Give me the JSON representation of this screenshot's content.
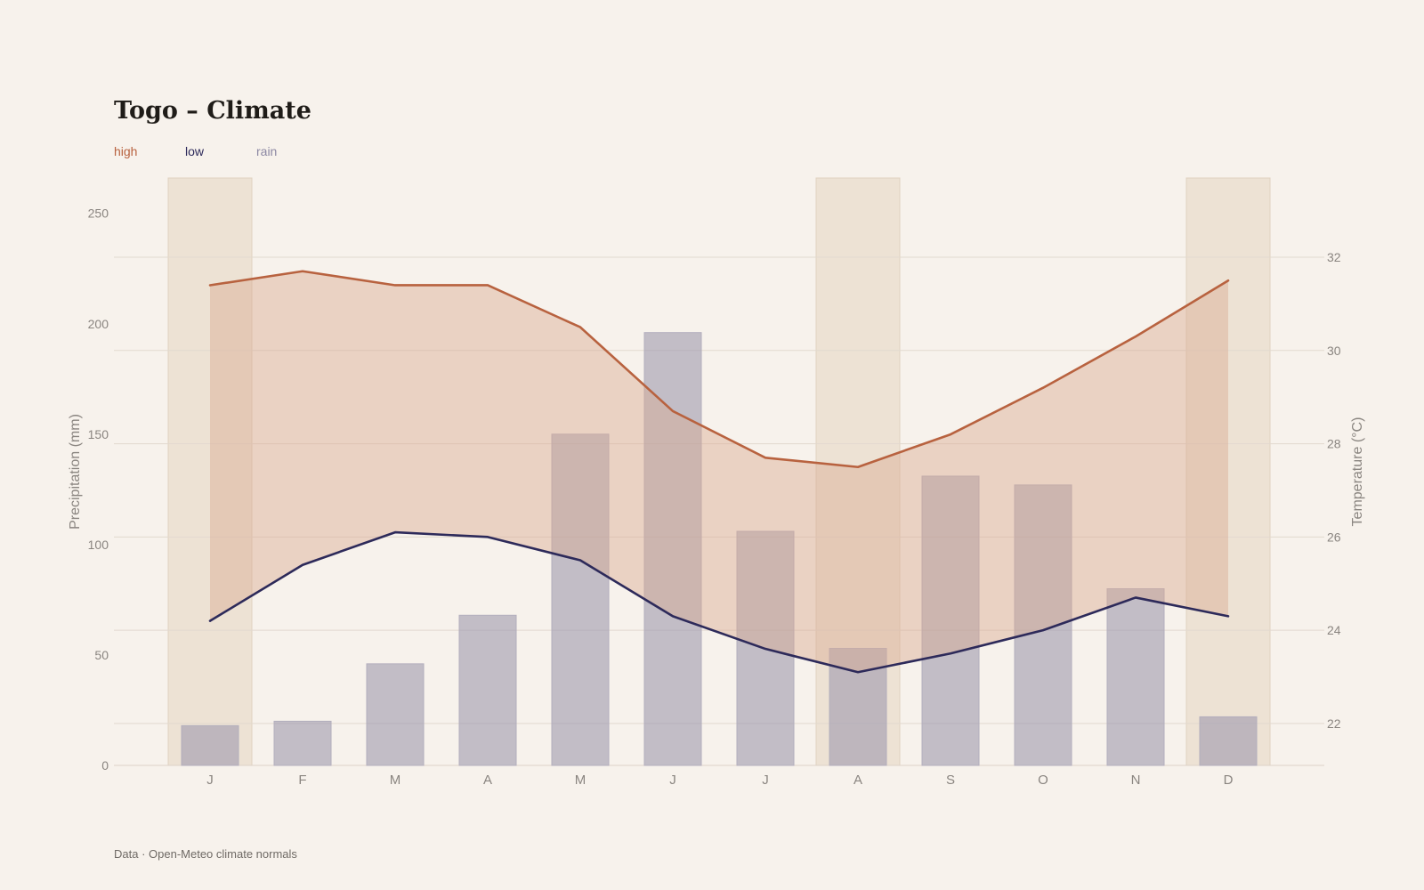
{
  "chart_data": {
    "type": "bar",
    "title": "Togo – Climate",
    "categories": [
      "J",
      "F",
      "M",
      "A",
      "M",
      "J",
      "J",
      "A",
      "S",
      "O",
      "N",
      "D"
    ],
    "series": [
      {
        "name": "rain",
        "type": "bar",
        "axis": "left",
        "color": "#9e99ad",
        "values": [
          18,
          20,
          46,
          68,
          150,
          196,
          106,
          53,
          131,
          127,
          80,
          22
        ]
      },
      {
        "name": "high",
        "type": "line",
        "axis": "right",
        "color": "#b8623f",
        "values": [
          31.4,
          31.7,
          31.4,
          31.4,
          30.5,
          28.7,
          27.7,
          27.5,
          28.2,
          29.2,
          30.3,
          31.5
        ]
      },
      {
        "name": "low",
        "type": "line",
        "axis": "right",
        "color": "#2d2a5a",
        "values": [
          24.2,
          25.4,
          26.1,
          26.0,
          25.5,
          24.3,
          23.6,
          23.1,
          23.5,
          24.0,
          24.7,
          24.3
        ]
      }
    ],
    "band_between": [
      "high",
      "low"
    ],
    "band_color": "#d9aa92",
    "highlighted_months": [
      "J",
      "A",
      "D"
    ],
    "highlight_color": "#e8dccb",
    "y_left": {
      "label": "Precipitation (mm)",
      "ticks": [
        "0",
        "50",
        "100",
        "150",
        "200",
        "250"
      ],
      "range": [
        0,
        266
      ]
    },
    "y_right": {
      "label": "Temperature (°C)",
      "ticks": [
        "22",
        "24",
        "26",
        "28",
        "30",
        "32"
      ],
      "range": [
        21.1,
        33.7
      ]
    },
    "legend": {
      "placement": "top-left",
      "items": [
        {
          "label": "high",
          "color": "#b8623f"
        },
        {
          "label": "low",
          "color": "#2d2a5a"
        },
        {
          "label": "rain",
          "color": "#8c88a3"
        }
      ]
    },
    "grid": true,
    "source": "Data · Open-Meteo climate normals"
  }
}
